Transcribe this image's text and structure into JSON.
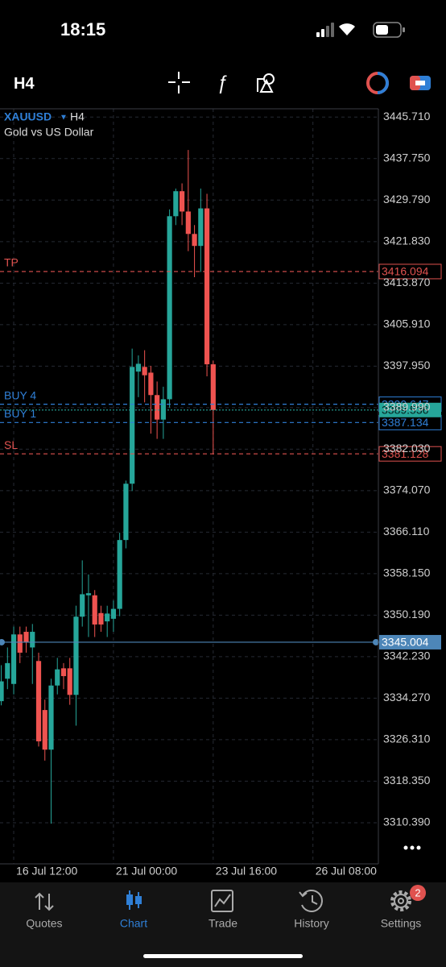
{
  "status_bar": {
    "time": "18:15"
  },
  "toolbar": {
    "timeframe": "H4"
  },
  "chart_data": {
    "type": "candlestick",
    "symbol": "XAUUSD",
    "timeframe": "H4",
    "description": "Gold vs US Dollar",
    "up_color": "#26a69a",
    "down_color": "#ef5350",
    "grid": true,
    "x": [
      0,
      1,
      2,
      3,
      4,
      5,
      6,
      7,
      8,
      9,
      10,
      11,
      12,
      13,
      14,
      15,
      16,
      17,
      18,
      19,
      20,
      21,
      22,
      23,
      24,
      25,
      26,
      27,
      28,
      29,
      30,
      31,
      32,
      33,
      34
    ],
    "open": [
      3333.7,
      3338,
      3337,
      3346.5,
      3347,
      3344,
      3341.4,
      3332,
      3324.4,
      3336.7,
      3340,
      3340,
      3334.9,
      3349.9,
      3354,
      3354,
      3350.6,
      3349,
      3349.5,
      3351.4,
      3364.6,
      3375.4,
      3396.9,
      3397.8,
      3396.7,
      3392.4,
      3387.7,
      3391.6,
      3426.7,
      3431.5,
      3427.6,
      3423.3,
      3421,
      3428.2,
      3398.3
    ],
    "high": [
      3340.6,
      3344,
      3348,
      3348,
      3348,
      3348.5,
      3343,
      3334,
      3338,
      3342,
      3341,
      3342,
      3352,
      3360.7,
      3358,
      3355,
      3352,
      3352,
      3353,
      3366,
      3376,
      3401.3,
      3400,
      3401,
      3398,
      3395,
      3394,
      3428,
      3432,
      3433,
      3439.4,
      3425,
      3432,
      3431,
      3399
    ],
    "low": [
      3332.9,
      3336,
      3335,
      3341,
      3343,
      3337,
      3325,
      3322.3,
      3310.2,
      3335,
      3336,
      3333,
      3329,
      3348,
      3346,
      3346,
      3347,
      3346,
      3347,
      3350,
      3363,
      3374,
      3392,
      3391,
      3385,
      3384,
      3384,
      3390,
      3425,
      3425,
      3420,
      3415,
      3416,
      3396,
      3381
    ],
    "close": [
      3337.5,
      3341,
      3346.5,
      3343,
      3345,
      3347,
      3326,
      3324.4,
      3336.7,
      3339.8,
      3338.5,
      3334.9,
      3349.9,
      3354.2,
      3354.4,
      3348.4,
      3348.4,
      3350.5,
      3351.4,
      3364.6,
      3375.4,
      3397.8,
      3398.4,
      3396.2,
      3392.4,
      3387.7,
      3391.6,
      3426.7,
      3431.5,
      3427.6,
      3423.3,
      3421,
      3428.2,
      3398.3,
      3389.536
    ],
    "xlim": [
      -0.2,
      60.5
    ],
    "xticks": [
      {
        "value": 2,
        "label": "16 Jul 12:00"
      },
      {
        "value": 18,
        "label": "21 Jul 00:00"
      },
      {
        "value": 34,
        "label": "23 Jul 16:00"
      },
      {
        "value": 50,
        "label": "26 Jul 08:00"
      }
    ],
    "ylim": [
      3302.5,
      3447.3
    ],
    "yticks": [
      {
        "value": 3445.71,
        "label": "3445.710"
      },
      {
        "value": 3437.75,
        "label": "3437.750"
      },
      {
        "value": 3429.79,
        "label": "3429.790"
      },
      {
        "value": 3421.83,
        "label": "3421.830"
      },
      {
        "value": 3413.87,
        "label": "3413.870"
      },
      {
        "value": 3405.91,
        "label": "3405.910"
      },
      {
        "value": 3397.95,
        "label": "3397.950"
      },
      {
        "value": 3389.99,
        "label": "3389.990"
      },
      {
        "value": 3382.03,
        "label": "3382.030"
      },
      {
        "value": 3374.07,
        "label": "3374.070"
      },
      {
        "value": 3366.11,
        "label": "3366.110"
      },
      {
        "value": 3358.15,
        "label": "3358.150"
      },
      {
        "value": 3350.19,
        "label": "3350.190"
      },
      {
        "value": 3342.23,
        "label": "3342.230"
      },
      {
        "value": 3334.27,
        "label": "3334.270"
      },
      {
        "value": 3326.31,
        "label": "3326.310"
      },
      {
        "value": 3318.35,
        "label": "3318.350"
      },
      {
        "value": 3310.39,
        "label": "3310.390"
      }
    ],
    "levels": [
      {
        "name": "TP",
        "value": 3416.094,
        "color": "#e0524f",
        "style": "dashed",
        "box": "outline"
      },
      {
        "name": "BUY 4",
        "value": 3390.647,
        "color": "#2f7fd6",
        "style": "dashed",
        "box": "outline"
      },
      {
        "name": "BUY 1",
        "value": 3387.134,
        "color": "#2f7fd6",
        "style": "dashed",
        "box": "outline"
      },
      {
        "name": "SL",
        "value": 3381.128,
        "color": "#e0524f",
        "style": "dashed",
        "box": "outline"
      },
      {
        "value": 3389.536,
        "color": "#26a69a",
        "style": "dotted",
        "box": "filled"
      },
      {
        "value": 3345.004,
        "color": "#4d86b8",
        "style": "solid",
        "box": "filled"
      }
    ]
  },
  "tab_bar": {
    "tabs": [
      "Quotes",
      "Chart",
      "Trade",
      "History",
      "Settings"
    ],
    "active": 1,
    "settings_badge": "2"
  }
}
